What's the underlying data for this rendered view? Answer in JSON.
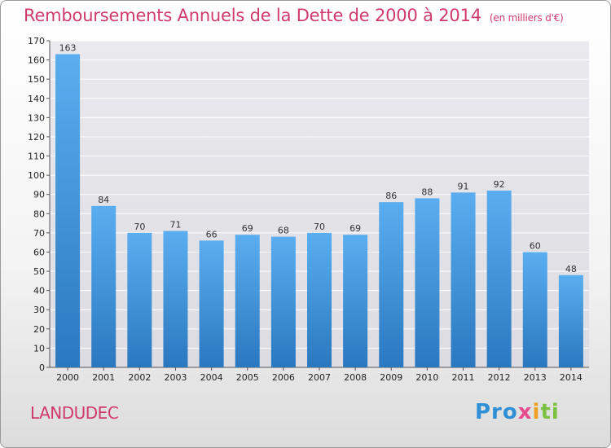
{
  "header": {
    "title": "Remboursements Annuels de la Dette de 2000 à 2014",
    "unit": "(en milliers d'€)"
  },
  "footer": {
    "place": "LANDUDEC",
    "logo": "Proxiti"
  },
  "chart_data": {
    "type": "bar",
    "title": "Remboursements Annuels de la Dette de 2000 à 2014",
    "subtitle": "(en milliers d'€)",
    "xlabel": "",
    "ylabel": "",
    "categories": [
      "2000",
      "2001",
      "2002",
      "2003",
      "2004",
      "2005",
      "2006",
      "2007",
      "2008",
      "2009",
      "2010",
      "2011",
      "2012",
      "2013",
      "2014"
    ],
    "values": [
      163,
      84,
      70,
      71,
      66,
      69,
      68,
      70,
      69,
      86,
      88,
      91,
      92,
      60,
      48
    ],
    "ylim": [
      0,
      170
    ],
    "ytick_step": 10,
    "grid": true,
    "bar_color": "#3f97df",
    "bar_color_dark": "#2a78c0"
  }
}
